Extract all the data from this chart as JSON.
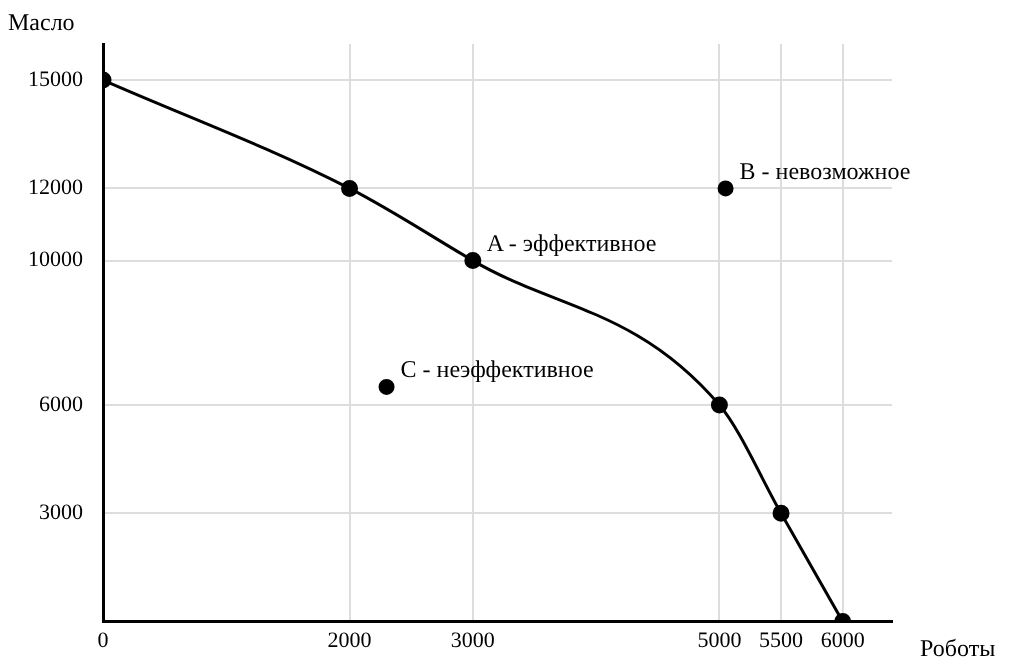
{
  "chart_data": {
    "type": "line",
    "xlabel": "Роботы",
    "ylabel": "Масло",
    "x": [
      0,
      2000,
      3000,
      5000,
      5500,
      6000
    ],
    "series": [
      {
        "color": "#000000",
        "values": [
          15000,
          12000,
          10000,
          6000,
          3000,
          0
        ]
      },
      {
        "type": "scatter",
        "color": "#000000",
        "x": [
          5050,
          2300
        ],
        "values": [
          12000,
          6500
        ]
      }
    ],
    "xlim": [
      0,
      6400
    ],
    "ylim": [
      0,
      16000
    ],
    "xticks": [
      0,
      2000,
      3000,
      5000,
      5500,
      6000
    ],
    "yticks": [
      3000,
      6000,
      10000,
      12000,
      15000
    ],
    "annotations": [
      {
        "text": "A - эффективное",
        "x": 3000,
        "y": 10000
      },
      {
        "text": "B - невозможное",
        "x": 5050,
        "y": 12000
      },
      {
        "text": "C - неэффективное",
        "x": 2300,
        "y": 6500
      }
    ],
    "grid": true,
    "marker": "circle",
    "line_style": "solid",
    "legend": false
  }
}
